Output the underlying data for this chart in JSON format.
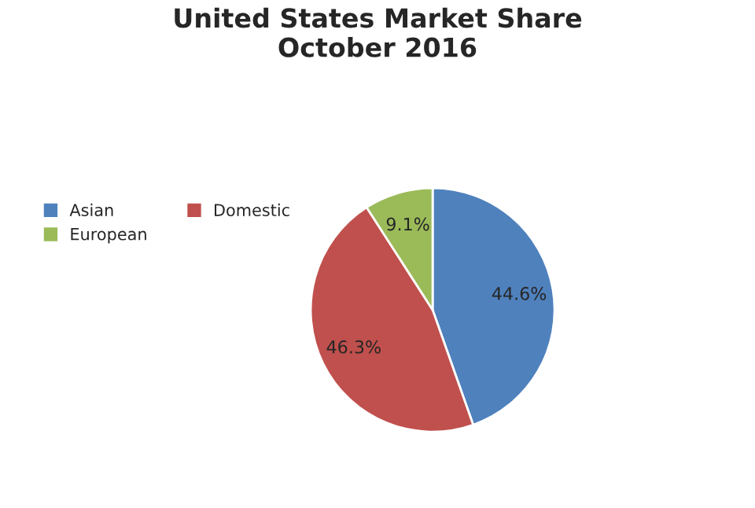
{
  "chart_data": {
    "type": "pie",
    "title": "United States Market Share\nOctober 2016",
    "categories": [
      "Asian",
      "Domestic",
      "European"
    ],
    "values": [
      44.6,
      46.3,
      9.1
    ],
    "colors": [
      "#4f81bd",
      "#c0504d",
      "#9bbb59"
    ],
    "value_labels": [
      "44.6%",
      "46.3%",
      "9.1%"
    ],
    "legend": "left"
  }
}
